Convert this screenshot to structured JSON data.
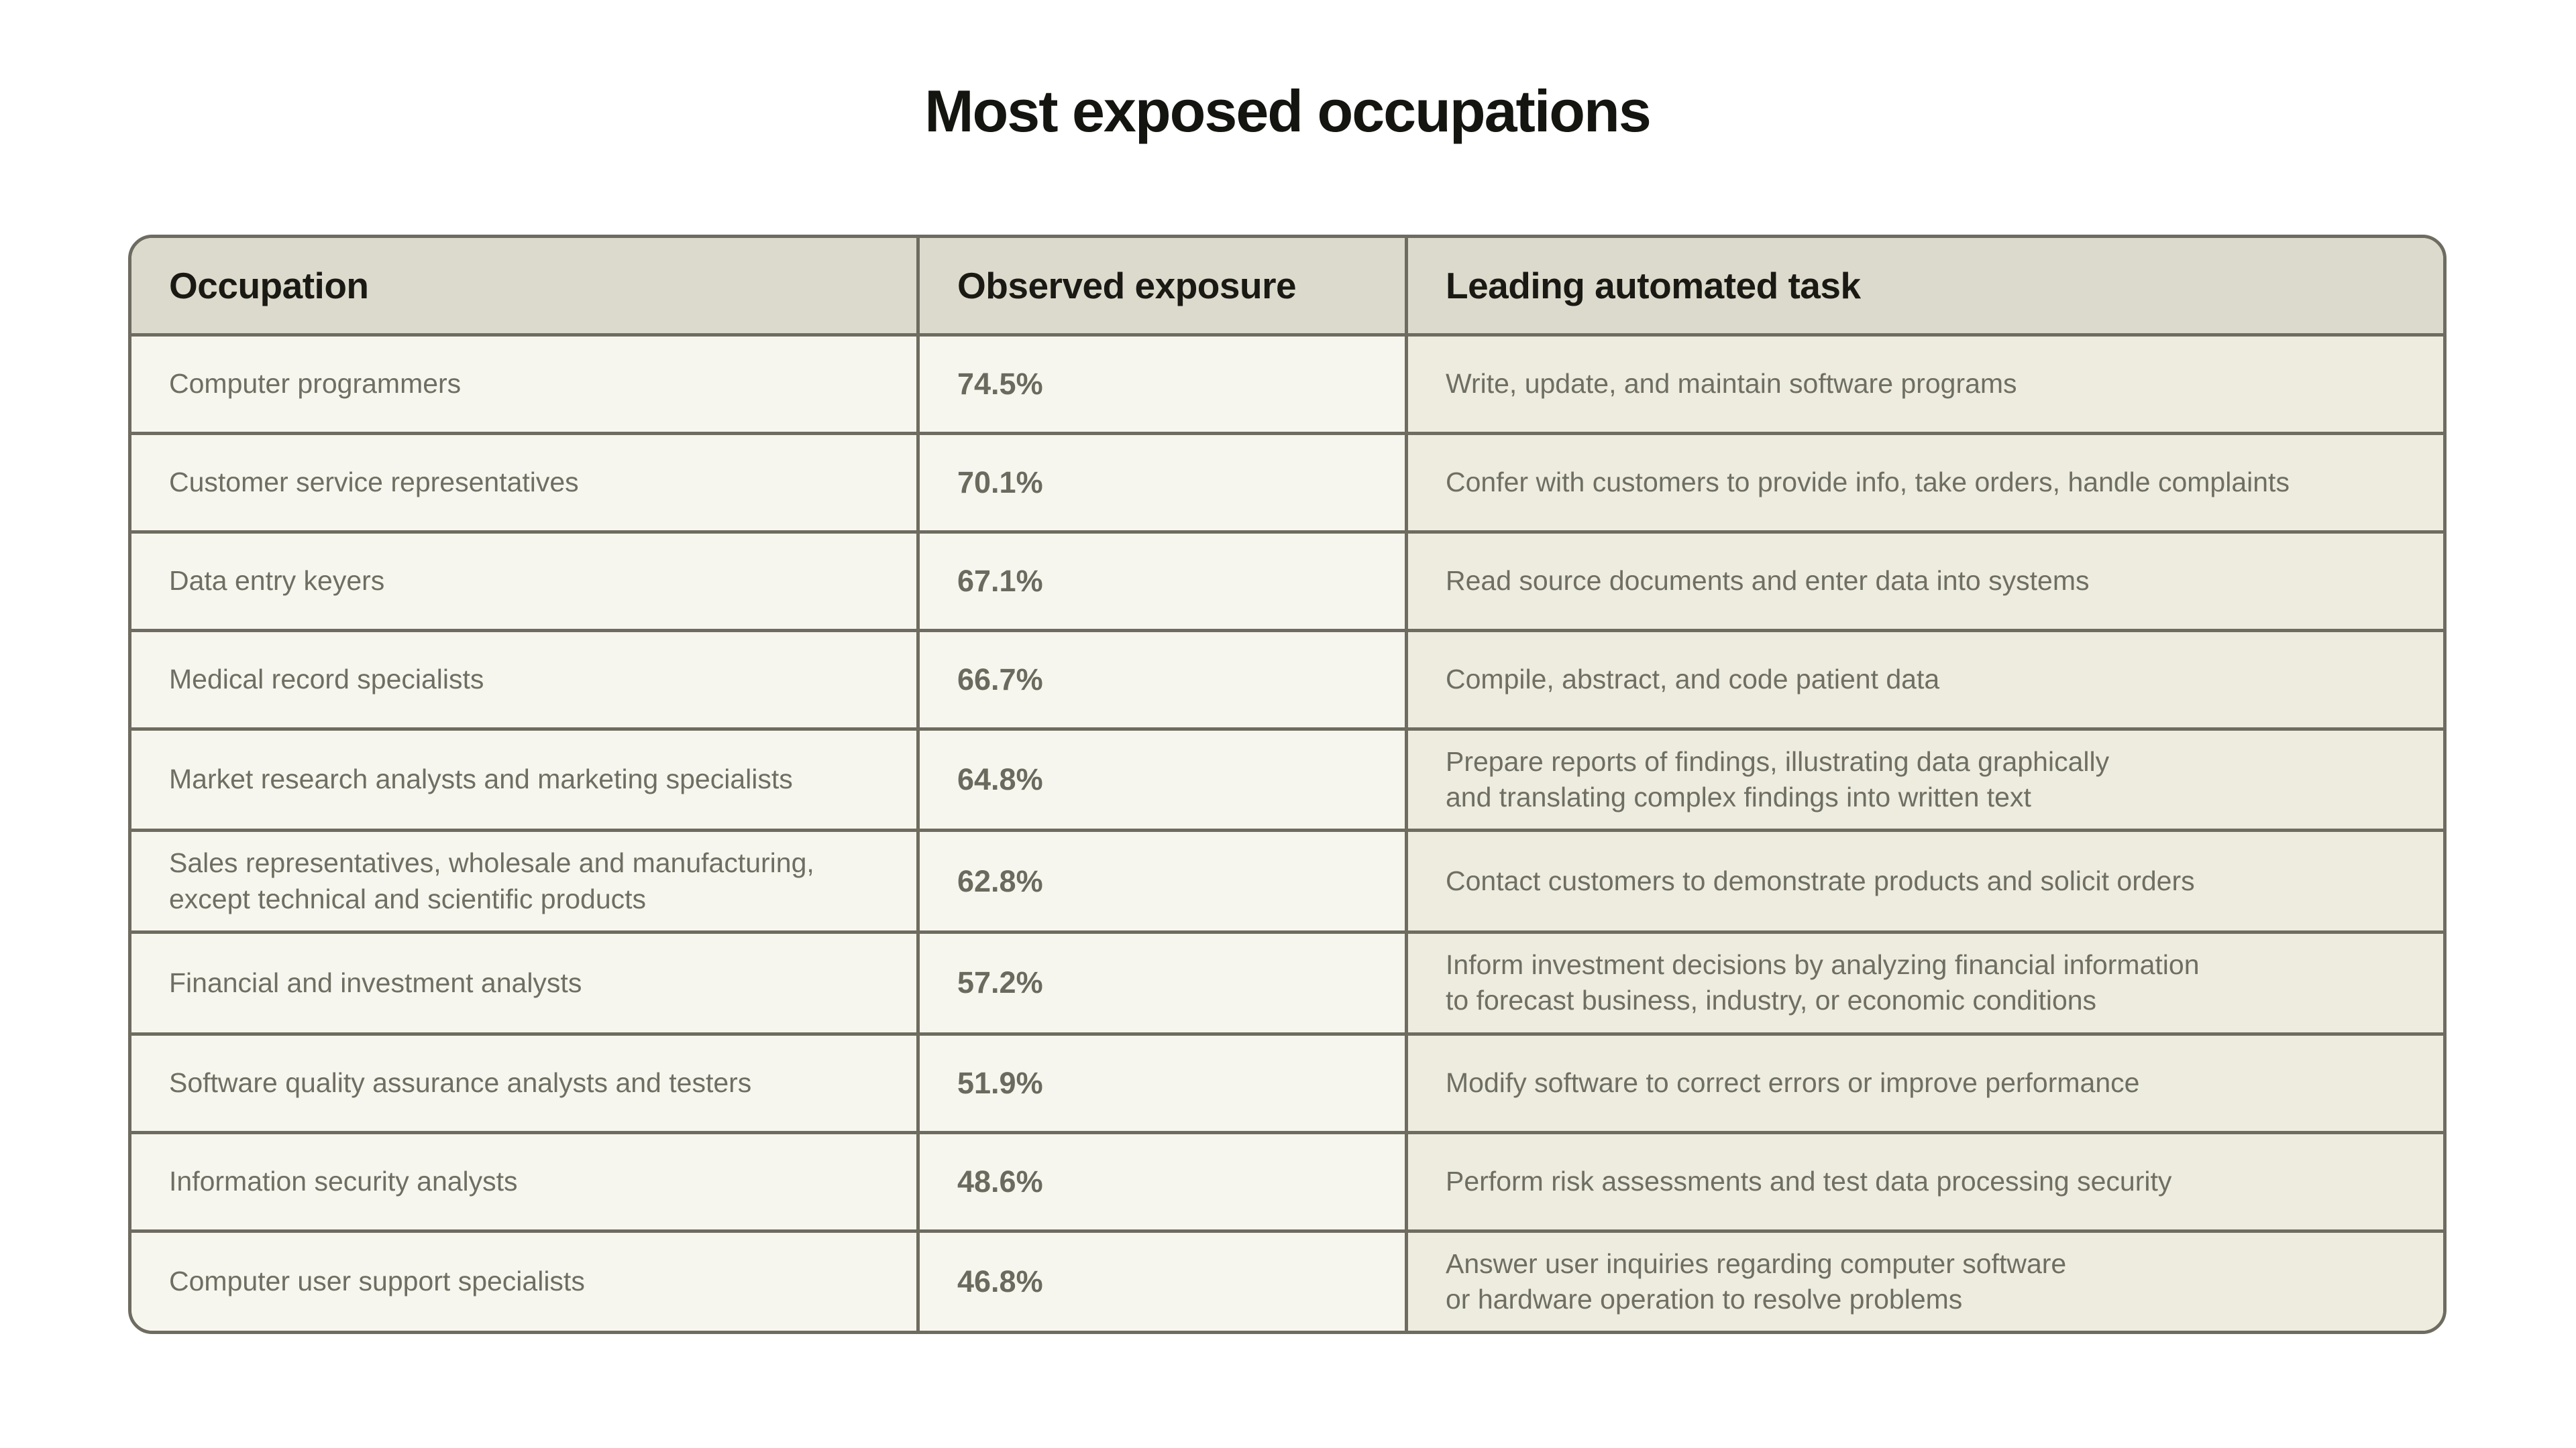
{
  "page": {
    "title": "Most exposed occupations"
  },
  "colors": {
    "page_bg": "#ffffff",
    "border": "#6e6c60",
    "header_bg": "#dcdacd",
    "header_text": "#1a1913",
    "row_bg": "#f7f6ee",
    "task_col_bg": "#edecdf",
    "body_text": "#6f6e63",
    "exposure_text": "#6b6a5f",
    "title_text": "#141410"
  },
  "chart_data": {
    "type": "table",
    "title": "Most exposed occupations",
    "columns": [
      "Occupation",
      "Observed exposure",
      "Leading automated task"
    ],
    "exposure_values_pct": [
      74.5,
      70.1,
      67.1,
      66.7,
      64.8,
      62.8,
      57.2,
      51.9,
      48.6,
      46.8
    ],
    "rows": [
      {
        "occupation": "Computer programmers",
        "exposure": "74.5%",
        "task": "Write, update, and maintain software programs"
      },
      {
        "occupation": "Customer service representatives",
        "exposure": "70.1%",
        "task": "Confer with customers to provide info, take orders, handle complaints"
      },
      {
        "occupation": "Data entry keyers",
        "exposure": "67.1%",
        "task": "Read source documents and enter data into systems"
      },
      {
        "occupation": "Medical record specialists",
        "exposure": "66.7%",
        "task": "Compile, abstract, and code patient data"
      },
      {
        "occupation": "Market research analysts and marketing specialists",
        "exposure": "64.8%",
        "task": "Prepare reports of findings, illustrating data graphically\nand translating complex findings into written text"
      },
      {
        "occupation": "Sales representatives, wholesale and manufacturing,\nexcept technical and scientific products",
        "exposure": "62.8%",
        "task": "Contact customers to demonstrate products and solicit orders"
      },
      {
        "occupation": "Financial and investment analysts",
        "exposure": "57.2%",
        "task": "Inform investment decisions by analyzing financial information\nto forecast business, industry, or economic conditions"
      },
      {
        "occupation": "Software quality assurance analysts and testers",
        "exposure": "51.9%",
        "task": "Modify software to correct errors or improve performance"
      },
      {
        "occupation": "Information security analysts",
        "exposure": "48.6%",
        "task": "Perform risk assessments and test data processing security"
      },
      {
        "occupation": "Computer user support specialists",
        "exposure": "46.8%",
        "task": "Answer user inquiries regarding computer software\nor hardware operation to resolve problems"
      }
    ]
  }
}
